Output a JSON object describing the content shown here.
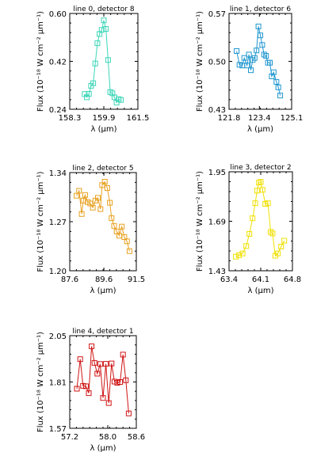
{
  "chart_data": [
    {
      "type": "line",
      "title": "line 0, detector 8",
      "xlabel": "λ (μm)",
      "ylabel": "Flux (10⁻¹⁸ W cm⁻² μm⁻¹)",
      "color": "#3cd6b8",
      "xlim": [
        158.3,
        161.5
      ],
      "ylim": [
        0.24,
        0.6
      ],
      "xticks": [
        "158.3",
        "159.9",
        "161.5"
      ],
      "yticks": [
        "0.24",
        "0.42",
        "0.60"
      ],
      "series": [
        {
          "x": [
            159.0,
            159.1,
            159.2,
            159.3,
            159.4,
            159.5,
            159.6,
            159.7,
            159.8,
            159.9,
            160.0,
            160.1,
            160.2,
            160.3,
            160.4,
            160.5,
            160.6,
            160.7
          ],
          "y": [
            0.297,
            0.285,
            0.298,
            0.328,
            0.338,
            0.412,
            0.488,
            0.523,
            0.538,
            0.574,
            0.542,
            0.425,
            0.305,
            0.3,
            0.285,
            0.265,
            0.278,
            0.275
          ]
        }
      ]
    },
    {
      "type": "line",
      "title": "line 1, detector 6",
      "xlabel": "λ (μm)",
      "ylabel": "Flux (10⁻¹⁸ W cm⁻² μm⁻¹)",
      "color": "#1f96cf",
      "xlim": [
        121.8,
        125.1
      ],
      "ylim": [
        0.43,
        0.57
      ],
      "xticks": [
        "121.8",
        "123.4",
        "125.1"
      ],
      "yticks": [
        "0.43",
        "0.50",
        "0.57"
      ],
      "series": [
        {
          "x": [
            122.2,
            122.35,
            122.5,
            122.6,
            122.75,
            122.85,
            122.95,
            123.05,
            123.15,
            123.25,
            123.35,
            123.45,
            123.55,
            123.65,
            123.75,
            123.85,
            123.95,
            124.05,
            124.15,
            124.3,
            124.4,
            124.5
          ],
          "y": [
            0.515,
            0.495,
            0.494,
            0.505,
            0.494,
            0.51,
            0.487,
            0.502,
            0.505,
            0.516,
            0.551,
            0.538,
            0.524,
            0.51,
            0.508,
            0.498,
            0.498,
            0.478,
            0.484,
            0.47,
            0.462,
            0.45
          ]
        }
      ]
    },
    {
      "type": "line",
      "title": "line 2, detector 5",
      "xlabel": "λ (μm)",
      "ylabel": "Flux (10⁻¹⁸ W cm⁻² μm⁻¹)",
      "color": "#e8a020",
      "xlim": [
        87.6,
        91.5
      ],
      "ylim": [
        1.2,
        1.34
      ],
      "xticks": [
        "87.6",
        "89.6",
        "91.5"
      ],
      "yticks": [
        "1.20",
        "1.27",
        "1.34"
      ],
      "series": [
        {
          "x": [
            88.0,
            88.15,
            88.3,
            88.4,
            88.5,
            88.65,
            88.8,
            88.95,
            89.1,
            89.25,
            89.4,
            89.5,
            89.65,
            89.8,
            89.95,
            90.05,
            90.2,
            90.35,
            90.5,
            90.65,
            90.8,
            90.95,
            91.1
          ],
          "y": [
            1.307,
            1.314,
            1.281,
            1.3,
            1.308,
            1.298,
            1.296,
            1.29,
            1.3,
            1.304,
            1.288,
            1.322,
            1.327,
            1.318,
            1.297,
            1.275,
            1.264,
            1.256,
            1.25,
            1.263,
            1.248,
            1.242,
            1.228
          ]
        }
      ]
    },
    {
      "type": "line",
      "title": "line 3, detector 2",
      "xlabel": "λ (μm)",
      "ylabel": "Flux (10⁻¹⁸ W cm⁻² μm⁻¹)",
      "color": "#f0e000",
      "xlim": [
        63.4,
        64.8
      ],
      "ylim": [
        1.43,
        1.95
      ],
      "xticks": [
        "63.4",
        "64.1",
        "64.8"
      ],
      "yticks": [
        "1.43",
        "1.69",
        "1.95"
      ],
      "series": [
        {
          "x": [
            63.55,
            63.62,
            63.7,
            63.78,
            63.85,
            63.92,
            63.98,
            64.02,
            64.06,
            64.1,
            64.14,
            64.2,
            64.26,
            64.32,
            64.36,
            64.42,
            64.48,
            64.55,
            64.62
          ],
          "y": [
            1.504,
            1.512,
            1.521,
            1.56,
            1.624,
            1.706,
            1.785,
            1.851,
            1.893,
            1.897,
            1.855,
            1.781,
            1.785,
            1.634,
            1.626,
            1.509,
            1.521,
            1.557,
            1.588
          ]
        }
      ]
    },
    {
      "type": "line",
      "title": "line 4, detector 1",
      "xlabel": "λ (μm)",
      "ylabel": "Flux (10⁻¹⁸ W cm⁻² μm⁻¹)",
      "color": "#d01414",
      "xlim": [
        57.2,
        58.6
      ],
      "ylim": [
        1.57,
        2.05
      ],
      "xticks": [
        "57.2",
        "58.0",
        "58.6"
      ],
      "yticks": [
        "1.57",
        "1.81",
        "2.05"
      ],
      "series": [
        {
          "x": [
            57.35,
            57.42,
            57.48,
            57.54,
            57.6,
            57.66,
            57.72,
            57.78,
            57.84,
            57.9,
            57.96,
            58.02,
            58.08,
            58.14,
            58.2,
            58.26,
            58.32,
            58.38,
            58.44
          ],
          "y": [
            1.775,
            1.928,
            1.79,
            1.788,
            1.752,
            1.995,
            1.909,
            1.853,
            1.903,
            1.727,
            1.904,
            1.701,
            1.906,
            1.812,
            1.806,
            1.81,
            1.952,
            1.819,
            1.647
          ]
        }
      ]
    }
  ]
}
